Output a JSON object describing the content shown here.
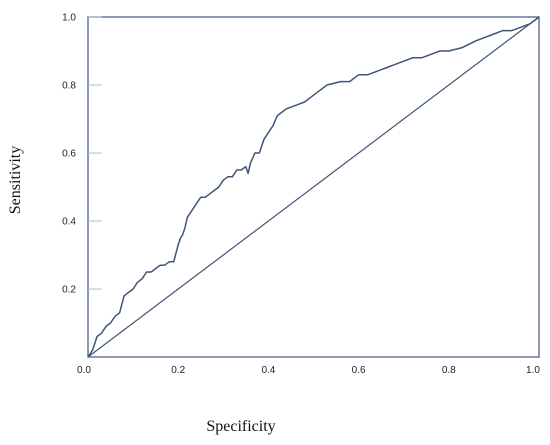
{
  "chart_data": {
    "type": "line",
    "title": "",
    "xlabel": "Specificity",
    "ylabel": "Sensitivity",
    "xlim": [
      0.0,
      1.0
    ],
    "ylim": [
      0.0,
      1.0
    ],
    "x_ticks": [
      "0.0",
      "0.2",
      "0.4",
      "0.6",
      "0.8",
      "1.0"
    ],
    "y_ticks": [
      "0.2",
      "0.4",
      "0.6",
      "0.8",
      "1.0"
    ],
    "grid": false,
    "colors": {
      "frame": "#5a6f8e",
      "curve": "#3f5478",
      "tick_mark": "#9fc1dd"
    },
    "series": [
      {
        "style": "step-line",
        "x": [
          0.0,
          0.01,
          0.015,
          0.02,
          0.03,
          0.04,
          0.05,
          0.06,
          0.07,
          0.08,
          0.09,
          0.1,
          0.11,
          0.12,
          0.13,
          0.14,
          0.15,
          0.16,
          0.17,
          0.18,
          0.19,
          0.2,
          0.205,
          0.21,
          0.215,
          0.22,
          0.23,
          0.24,
          0.25,
          0.26,
          0.27,
          0.28,
          0.29,
          0.3,
          0.31,
          0.32,
          0.33,
          0.34,
          0.35,
          0.355,
          0.36,
          0.37,
          0.38,
          0.39,
          0.4,
          0.41,
          0.42,
          0.44,
          0.46,
          0.48,
          0.5,
          0.53,
          0.56,
          0.58,
          0.6,
          0.62,
          0.64,
          0.66,
          0.68,
          0.7,
          0.72,
          0.74,
          0.76,
          0.78,
          0.8,
          0.83,
          0.86,
          0.88,
          0.9,
          0.92,
          0.94,
          0.96,
          0.98,
          1.0
        ],
        "y": [
          0.0,
          0.02,
          0.04,
          0.06,
          0.07,
          0.09,
          0.1,
          0.12,
          0.13,
          0.18,
          0.19,
          0.2,
          0.22,
          0.23,
          0.25,
          0.25,
          0.26,
          0.27,
          0.27,
          0.28,
          0.28,
          0.33,
          0.35,
          0.36,
          0.38,
          0.41,
          0.43,
          0.45,
          0.47,
          0.47,
          0.48,
          0.49,
          0.5,
          0.52,
          0.53,
          0.53,
          0.55,
          0.55,
          0.56,
          0.54,
          0.57,
          0.6,
          0.6,
          0.64,
          0.66,
          0.68,
          0.71,
          0.73,
          0.74,
          0.75,
          0.77,
          0.8,
          0.81,
          0.81,
          0.83,
          0.83,
          0.84,
          0.85,
          0.86,
          0.87,
          0.88,
          0.88,
          0.89,
          0.9,
          0.9,
          0.91,
          0.93,
          0.94,
          0.95,
          0.96,
          0.96,
          0.97,
          0.98,
          1.0
        ]
      },
      {
        "style": "diagonal",
        "x": [
          0.0,
          1.0
        ],
        "y": [
          0.0,
          1.0
        ]
      }
    ]
  }
}
